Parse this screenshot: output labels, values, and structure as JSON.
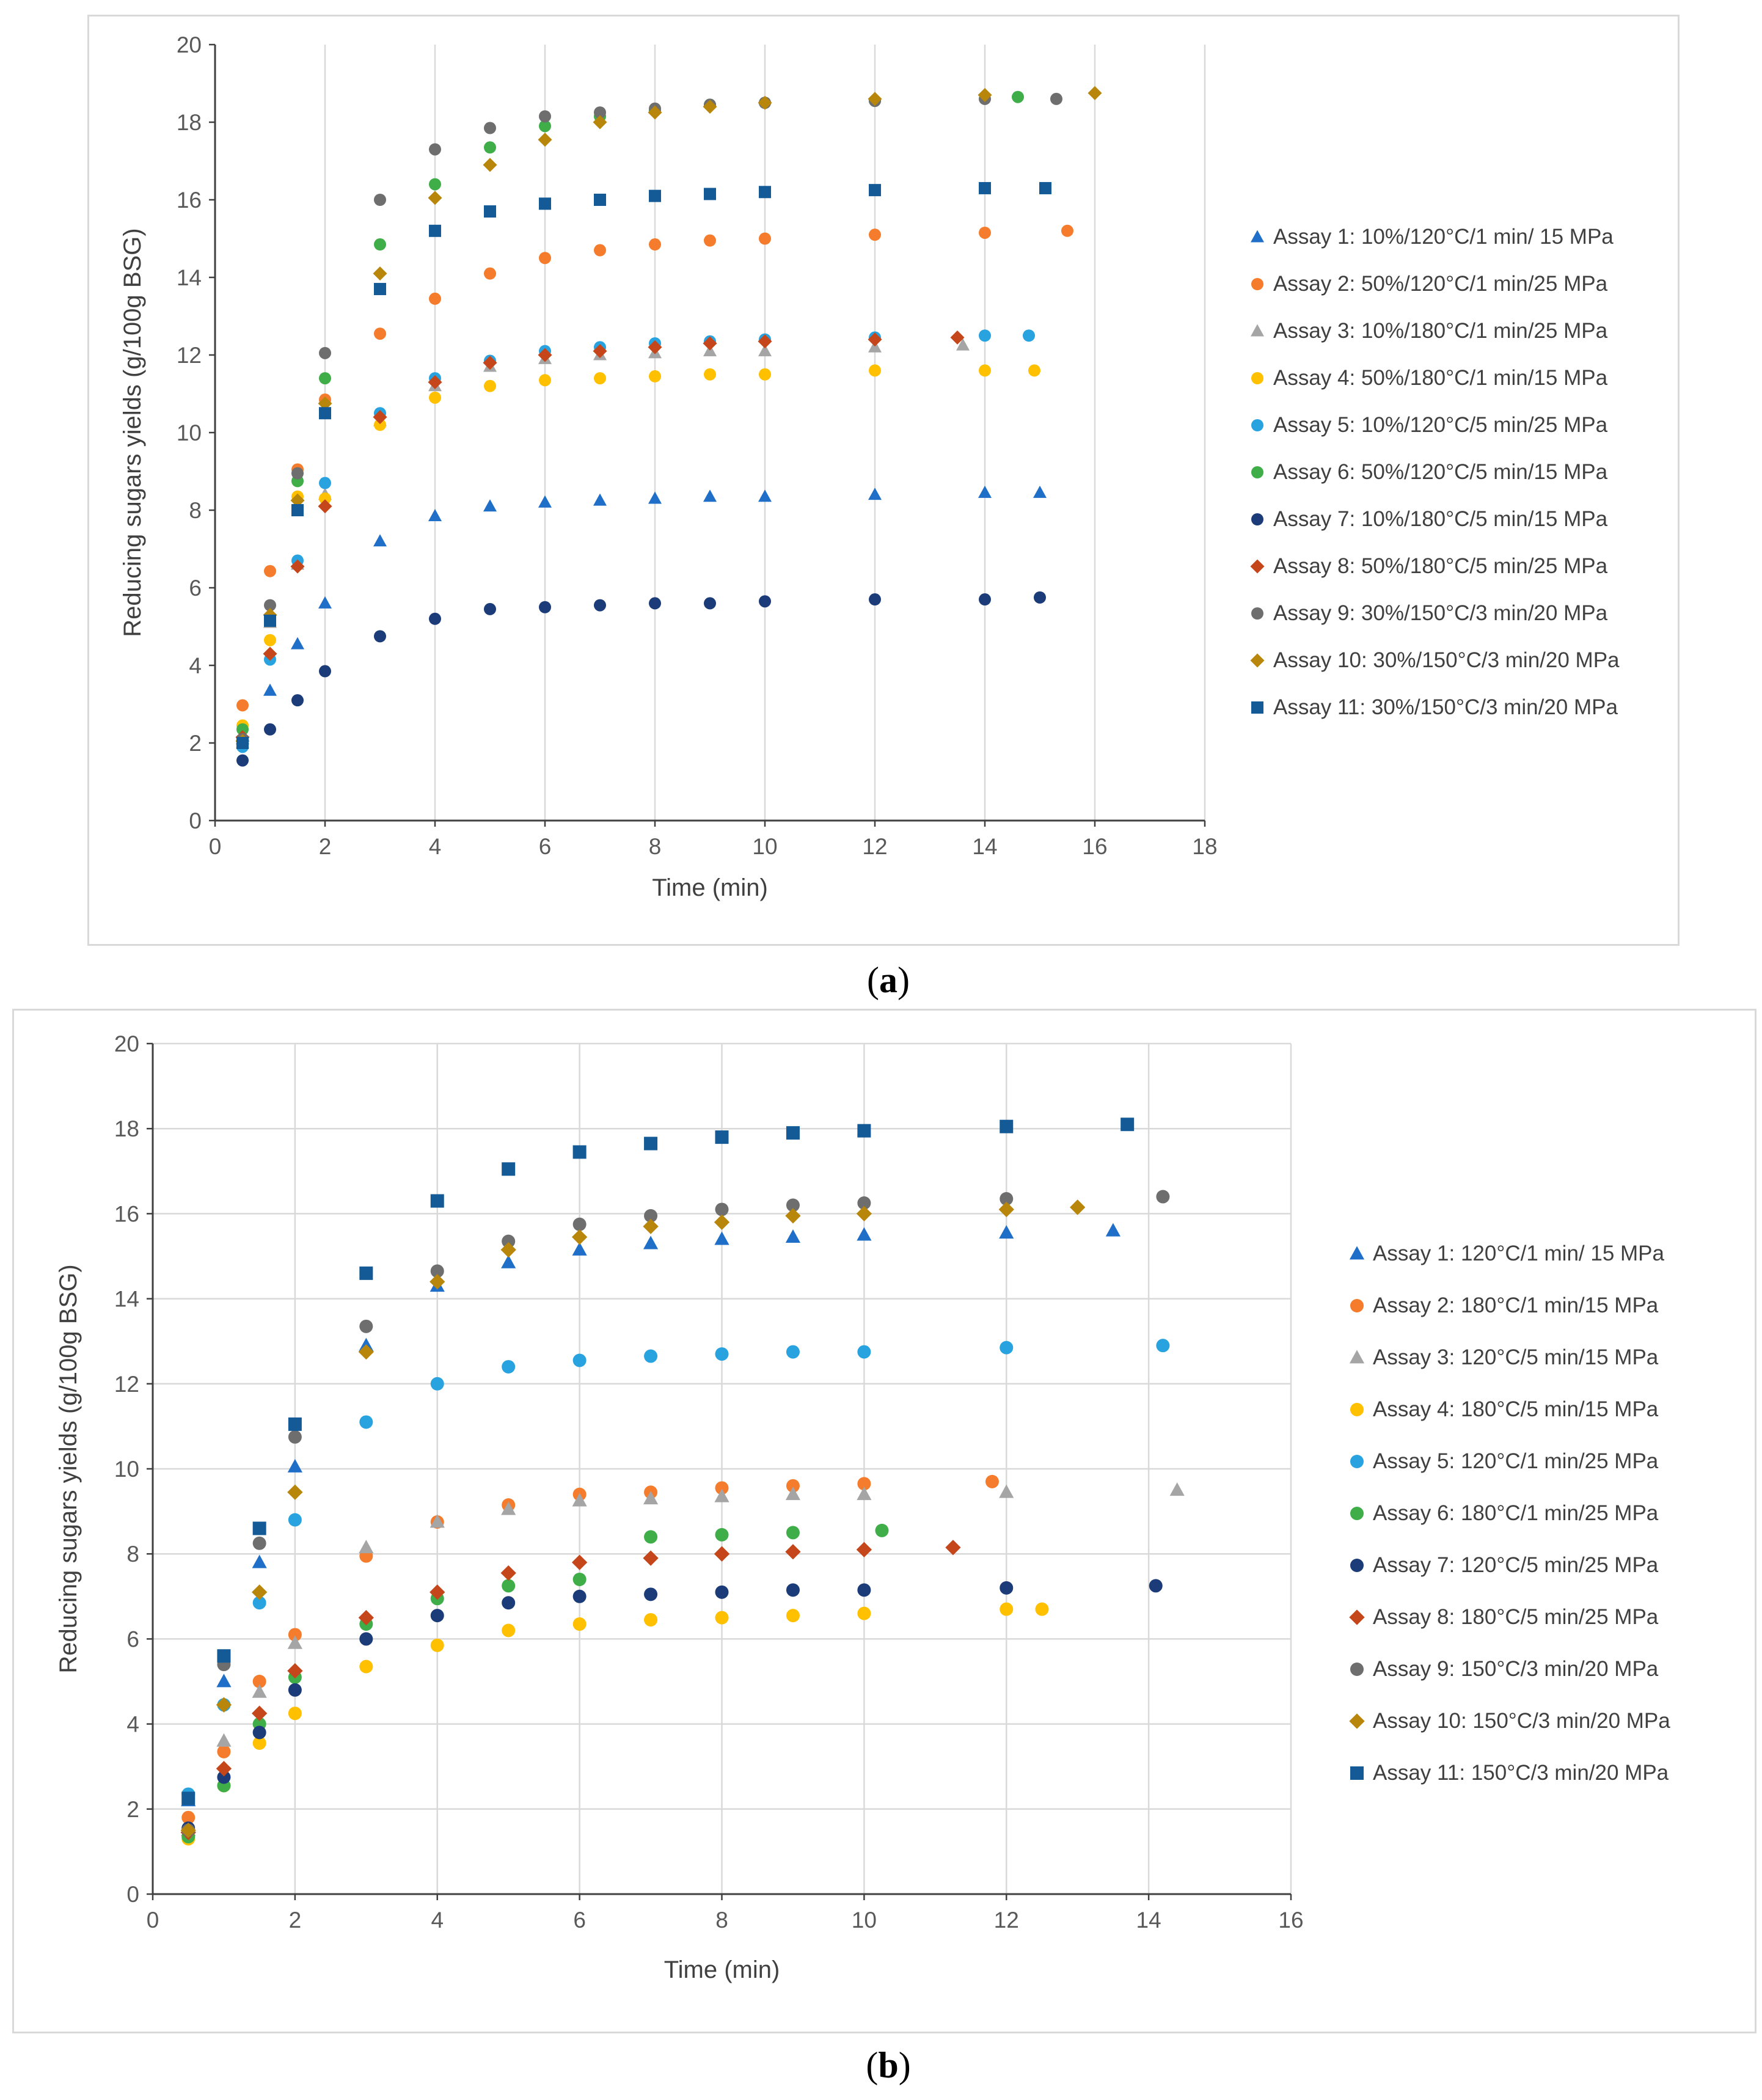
{
  "figure_labels": {
    "a": {
      "open": "(",
      "letter": "a",
      "close": ")"
    },
    "b": {
      "open": "(",
      "letter": "b",
      "close": ")"
    }
  },
  "chart_data": [
    {
      "panel": "a",
      "type": "scatter",
      "xlabel": "Time (min)",
      "ylabel": "Reducing sugars yields (g/100g BSG)",
      "xlim": [
        0,
        18
      ],
      "ylim": [
        0,
        20
      ],
      "xticks": [
        "0",
        "2",
        "4",
        "6",
        "8",
        "10",
        "12",
        "14",
        "16",
        "18"
      ],
      "yticks": [
        "0",
        "2",
        "4",
        "6",
        "8",
        "10",
        "12",
        "14",
        "16",
        "18",
        "20"
      ],
      "grid": "vertical",
      "legend_position": "right",
      "series": [
        {
          "name": "Assay 1: 10%/120°C/1 min/ 15 MPa",
          "marker": "triangle",
          "color": "#1f6fc9",
          "x": [
            0.5,
            1,
            1.5,
            2,
            3,
            4,
            5,
            6,
            7,
            8,
            9,
            10,
            12,
            14,
            15
          ],
          "y": [
            2.1,
            3.35,
            4.55,
            5.6,
            7.2,
            7.85,
            8.1,
            8.2,
            8.25,
            8.3,
            8.35,
            8.35,
            8.4,
            8.45,
            8.45
          ]
        },
        {
          "name": "Assay 2: 50%/120°C/1 min/25 MPa",
          "marker": "circle",
          "color": "#f47c2c",
          "x": [
            0.5,
            1,
            1.5,
            2,
            3,
            4,
            5,
            6,
            7,
            8,
            9,
            10,
            12,
            14,
            15.5
          ],
          "y": [
            2.97,
            6.43,
            9.05,
            10.85,
            12.55,
            13.45,
            14.1,
            14.5,
            14.7,
            14.85,
            14.95,
            15.0,
            15.1,
            15.15,
            15.2
          ]
        },
        {
          "name": "Assay 3: 10%/180°C/1 min/25 MPa",
          "marker": "triangle",
          "color": "#a5a5a5",
          "x": [
            0.5,
            1,
            1.5,
            2,
            3,
            4,
            5,
            6,
            7,
            8,
            9,
            10,
            12,
            13.6
          ],
          "y": [
            2.0,
            5.1,
            6.6,
            8.4,
            10.3,
            11.2,
            11.7,
            11.9,
            12.0,
            12.05,
            12.1,
            12.1,
            12.2,
            12.25
          ]
        },
        {
          "name": "Assay 4: 50%/180°C/1 min/15 MPa",
          "marker": "circle",
          "color": "#ffc000",
          "x": [
            0.5,
            1,
            1.5,
            2,
            3,
            4,
            5,
            6,
            7,
            8,
            9,
            10,
            12,
            14,
            14.9
          ],
          "y": [
            2.45,
            4.65,
            8.35,
            8.3,
            10.2,
            10.9,
            11.2,
            11.35,
            11.4,
            11.45,
            11.5,
            11.5,
            11.6,
            11.6,
            11.6
          ]
        },
        {
          "name": "Assay 5: 10%/120°C/5 min/25 MPa",
          "marker": "circle",
          "color": "#29a3e0",
          "x": [
            0.5,
            1,
            1.5,
            2,
            3,
            4,
            5,
            6,
            7,
            8,
            9,
            10,
            12,
            14,
            14.8
          ],
          "y": [
            1.9,
            4.15,
            6.7,
            8.7,
            10.5,
            11.4,
            11.85,
            12.1,
            12.2,
            12.3,
            12.35,
            12.4,
            12.45,
            12.5,
            12.5
          ]
        },
        {
          "name": "Assay 6: 50%/120°C/5 min/15 MPa",
          "marker": "circle",
          "color": "#3fae49",
          "x": [
            0.5,
            1,
            1.5,
            2,
            3,
            4,
            5,
            6,
            7,
            8,
            9,
            10,
            12,
            14.6
          ],
          "y": [
            2.35,
            5.25,
            8.75,
            11.4,
            14.85,
            16.4,
            17.35,
            17.9,
            18.15,
            18.3,
            18.45,
            18.5,
            18.55,
            18.65
          ]
        },
        {
          "name": "Assay 7: 10%/180°C/5 min/15 MPa",
          "marker": "circle",
          "color": "#1b3c78",
          "x": [
            0.5,
            1,
            1.5,
            2,
            3,
            4,
            5,
            6,
            7,
            8,
            9,
            10,
            12,
            14,
            15
          ],
          "y": [
            1.55,
            2.35,
            3.1,
            3.85,
            4.75,
            5.2,
            5.45,
            5.5,
            5.55,
            5.6,
            5.6,
            5.65,
            5.7,
            5.7,
            5.75
          ]
        },
        {
          "name": "Assay 8: 50%/180°C/5 min/25 MPa",
          "marker": "diamond",
          "color": "#c4461a",
          "x": [
            0.5,
            1,
            1.5,
            2,
            3,
            4,
            5,
            6,
            7,
            8,
            9,
            10,
            12,
            13.5
          ],
          "y": [
            2.15,
            4.3,
            6.55,
            8.1,
            10.4,
            11.3,
            11.8,
            12.0,
            12.1,
            12.2,
            12.3,
            12.35,
            12.4,
            12.45
          ]
        },
        {
          "name": "Assay 9: 30%/150°C/3 min/20 MPa",
          "marker": "circle",
          "color": "#6e6e6e",
          "x": [
            0.5,
            1,
            1.5,
            2,
            3,
            4,
            5,
            6,
            7,
            8,
            9,
            10,
            12,
            14,
            15.3
          ],
          "y": [
            2.1,
            5.55,
            8.95,
            12.05,
            16.0,
            17.3,
            17.85,
            18.15,
            18.25,
            18.35,
            18.45,
            18.5,
            18.55,
            18.6,
            18.6
          ]
        },
        {
          "name": "Assay 10: 30%/150°C/3 min/20 MPa",
          "marker": "diamond",
          "color": "#b8860b",
          "x": [
            0.5,
            1,
            1.5,
            2,
            3,
            4,
            5,
            6,
            7,
            8,
            9,
            10,
            12,
            14,
            16
          ],
          "y": [
            2.05,
            5.3,
            8.25,
            10.75,
            14.1,
            16.05,
            16.9,
            17.55,
            18.0,
            18.25,
            18.4,
            18.5,
            18.6,
            18.7,
            18.75
          ]
        },
        {
          "name": "Assay 11: 30%/150°C/3 min/20 MPa",
          "marker": "square",
          "color": "#135a96",
          "x": [
            0.5,
            1,
            1.5,
            2,
            3,
            4,
            5,
            6,
            7,
            8,
            9,
            10,
            12,
            14,
            15.1
          ],
          "y": [
            2.0,
            5.15,
            8.0,
            10.5,
            13.7,
            15.2,
            15.7,
            15.9,
            16.0,
            16.1,
            16.15,
            16.2,
            16.25,
            16.3,
            16.3
          ]
        }
      ]
    },
    {
      "panel": "b",
      "type": "scatter",
      "xlabel": "Time (min)",
      "ylabel": "Reducing sugars yields (g/100g BSG)",
      "xlim": [
        0,
        16
      ],
      "ylim": [
        0,
        20
      ],
      "xticks": [
        "0",
        "2",
        "4",
        "6",
        "8",
        "10",
        "12",
        "14",
        "16"
      ],
      "yticks": [
        "0",
        "2",
        "4",
        "6",
        "8",
        "10",
        "12",
        "14",
        "16",
        "18",
        "20"
      ],
      "grid": "both",
      "legend_position": "right",
      "series": [
        {
          "name": "Assay 1: 120°C/1 min/ 15 MPa",
          "marker": "triangle",
          "color": "#1f6fc9",
          "x": [
            0.5,
            1,
            1.5,
            2,
            3,
            4,
            5,
            6,
            7,
            8,
            9,
            10,
            12,
            13.5
          ],
          "y": [
            2.2,
            5.0,
            7.8,
            10.05,
            12.9,
            14.3,
            14.85,
            15.15,
            15.3,
            15.4,
            15.45,
            15.5,
            15.55,
            15.6
          ]
        },
        {
          "name": "Assay 2: 180°C/1 min/15 MPa",
          "marker": "circle",
          "color": "#f47c2c",
          "x": [
            0.5,
            1,
            1.5,
            2,
            3,
            4,
            5,
            6,
            7,
            8,
            9,
            10,
            11.8
          ],
          "y": [
            1.8,
            3.35,
            5.0,
            6.1,
            7.95,
            8.75,
            9.15,
            9.4,
            9.45,
            9.55,
            9.6,
            9.65,
            9.7
          ]
        },
        {
          "name": "Assay 3: 120°C/5 min/15 MPa",
          "marker": "triangle",
          "color": "#a5a5a5",
          "x": [
            0.5,
            1,
            1.5,
            2,
            3,
            4,
            5,
            6,
            7,
            8,
            9,
            10,
            12,
            14.4
          ],
          "y": [
            1.5,
            3.6,
            4.75,
            5.9,
            8.15,
            8.75,
            9.05,
            9.25,
            9.3,
            9.35,
            9.4,
            9.4,
            9.45,
            9.5
          ]
        },
        {
          "name": "Assay 4: 180°C/5 min/15 MPa",
          "marker": "circle",
          "color": "#ffc000",
          "x": [
            0.5,
            1,
            1.5,
            2,
            3,
            4,
            5,
            6,
            7,
            8,
            9,
            10,
            12,
            12.5
          ],
          "y": [
            1.3,
            2.55,
            3.55,
            4.25,
            5.35,
            5.85,
            6.2,
            6.35,
            6.45,
            6.5,
            6.55,
            6.6,
            6.7,
            6.7
          ]
        },
        {
          "name": "Assay 5: 120°C/1 min/25 MPa",
          "marker": "circle",
          "color": "#29a3e0",
          "x": [
            0.5,
            1,
            1.5,
            2,
            3,
            4,
            5,
            6,
            7,
            8,
            9,
            10,
            12,
            14.2
          ],
          "y": [
            2.35,
            4.45,
            6.85,
            8.8,
            11.1,
            12.0,
            12.4,
            12.55,
            12.65,
            12.7,
            12.75,
            12.75,
            12.85,
            12.9
          ]
        },
        {
          "name": "Assay 6: 180°C/1 min/25 MPa",
          "marker": "circle",
          "color": "#3fae49",
          "x": [
            0.5,
            1,
            1.5,
            2,
            3,
            4,
            5,
            6,
            7,
            8,
            9,
            10.25
          ],
          "y": [
            1.35,
            2.55,
            4.0,
            5.1,
            6.35,
            6.95,
            7.25,
            7.4,
            8.4,
            8.45,
            8.5,
            8.55
          ]
        },
        {
          "name": "Assay 7: 120°C/5 min/25 MPa",
          "marker": "circle",
          "color": "#1b3c78",
          "x": [
            0.5,
            1,
            1.5,
            2,
            3,
            4,
            5,
            6,
            7,
            8,
            9,
            10,
            12,
            14.1
          ],
          "y": [
            1.55,
            2.75,
            3.8,
            4.8,
            6.0,
            6.55,
            6.85,
            7.0,
            7.05,
            7.1,
            7.15,
            7.15,
            7.2,
            7.25
          ]
        },
        {
          "name": "Assay 8: 180°C/5 min/25 MPa",
          "marker": "diamond",
          "color": "#c4461a",
          "x": [
            0.5,
            1,
            1.5,
            2,
            3,
            4,
            5,
            6,
            7,
            8,
            9,
            10,
            11.25
          ],
          "y": [
            1.45,
            2.95,
            4.25,
            5.25,
            6.5,
            7.1,
            7.55,
            7.8,
            7.9,
            8.0,
            8.05,
            8.1,
            8.15
          ]
        },
        {
          "name": "Assay 9: 150°C/3 min/20 MPa",
          "marker": "circle",
          "color": "#6e6e6e",
          "x": [
            0.5,
            1,
            1.5,
            2,
            3,
            4,
            5,
            6,
            7,
            8,
            9,
            10,
            12,
            14.2
          ],
          "y": [
            1.5,
            5.4,
            8.25,
            10.75,
            13.35,
            14.65,
            15.35,
            15.75,
            15.95,
            16.1,
            16.2,
            16.25,
            16.35,
            16.4
          ]
        },
        {
          "name": "Assay 10: 150°C/3 min/20 MPa",
          "marker": "diamond",
          "color": "#b8860b",
          "x": [
            0.5,
            1,
            1.5,
            2,
            3,
            4,
            5,
            6,
            7,
            8,
            9,
            10,
            12,
            13
          ],
          "y": [
            1.5,
            4.45,
            7.1,
            9.45,
            12.75,
            14.4,
            15.15,
            15.45,
            15.7,
            15.8,
            15.95,
            16.0,
            16.1,
            16.15
          ]
        },
        {
          "name": "Assay 11: 150°C/3 min/20 MPa",
          "marker": "square",
          "color": "#135a96",
          "x": [
            0.5,
            1,
            1.5,
            2,
            3,
            4,
            5,
            6,
            7,
            8,
            9,
            10,
            12,
            13.7
          ],
          "y": [
            2.25,
            5.6,
            8.6,
            11.05,
            14.6,
            16.3,
            17.05,
            17.45,
            17.65,
            17.8,
            17.9,
            17.95,
            18.05,
            18.1
          ]
        }
      ]
    }
  ]
}
